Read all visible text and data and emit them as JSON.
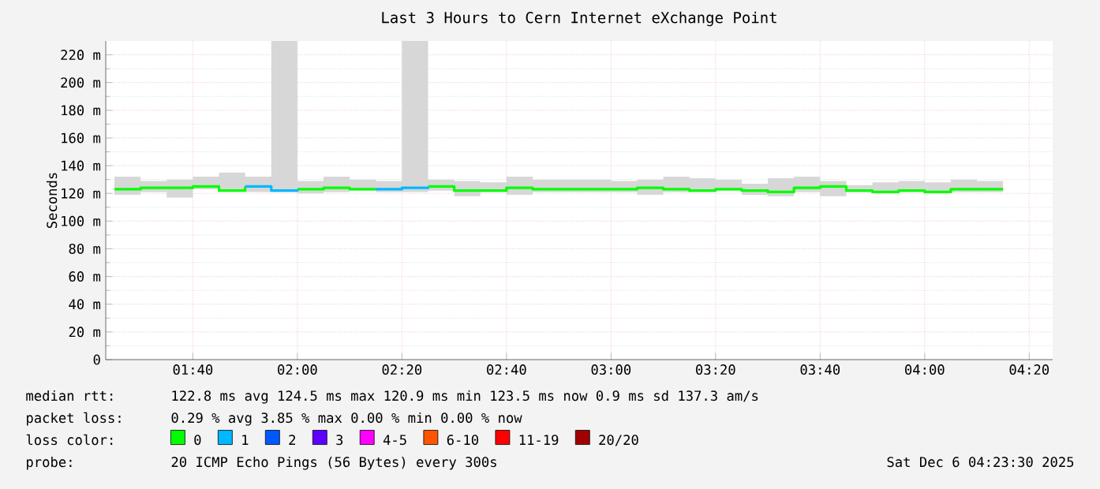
{
  "chart_data": {
    "type": "step",
    "title": "Last 3 Hours to Cern Internet eXchange Point",
    "ylabel": "Seconds",
    "x": [
      1.4167,
      1.5,
      1.5833,
      1.6667,
      1.75,
      1.8333,
      1.9167,
      2.0,
      2.0833,
      2.1667,
      2.25,
      2.3333,
      2.4167,
      2.5,
      2.5833,
      2.6667,
      2.75,
      2.8333,
      2.9167,
      3.0,
      3.0833,
      3.1667,
      3.25,
      3.3333,
      3.4167,
      3.5,
      3.5833,
      3.6667,
      3.75,
      3.8333,
      3.9167,
      4.0,
      4.0833,
      4.1667,
      4.25
    ],
    "xlim": [
      1.389,
      4.408
    ],
    "xticks": [
      {
        "value": 1.6667,
        "label": "01:40"
      },
      {
        "value": 2.0,
        "label": "02:00"
      },
      {
        "value": 2.3333,
        "label": "02:20"
      },
      {
        "value": 2.6667,
        "label": "02:40"
      },
      {
        "value": 3.0,
        "label": "03:00"
      },
      {
        "value": 3.3333,
        "label": "03:20"
      },
      {
        "value": 3.6667,
        "label": "03:40"
      },
      {
        "value": 4.0,
        "label": "04:00"
      },
      {
        "value": 4.3333,
        "label": "04:20"
      }
    ],
    "ylim": [
      0,
      230
    ],
    "yticks": [
      0,
      {
        "value": 20,
        "label": "20 m"
      },
      {
        "value": 40,
        "label": "40 m"
      },
      {
        "value": 60,
        "label": "60 m"
      },
      {
        "value": 80,
        "label": "80 m"
      },
      {
        "value": 100,
        "label": "100 m"
      },
      {
        "value": 120,
        "label": "120 m"
      },
      {
        "value": 140,
        "label": "140 m"
      },
      {
        "value": 160,
        "label": "160 m"
      },
      {
        "value": 180,
        "label": "180 m"
      },
      {
        "value": 200,
        "label": "200 m"
      },
      {
        "value": 220,
        "label": "220 m"
      }
    ],
    "grid": true,
    "legend": "bottom",
    "series": [
      {
        "name": "0",
        "color": "#00ff00",
        "values": [
          123,
          124,
          124,
          125,
          122,
          125,
          null,
          123,
          124,
          123,
          123,
          null,
          125,
          122,
          122,
          124,
          123,
          123,
          123,
          123,
          124,
          123,
          122,
          123,
          122,
          121,
          124,
          125,
          122,
          121,
          122,
          121,
          123,
          123,
          123
        ],
        "lower": [
          119,
          121,
          117,
          123,
          122,
          121,
          121,
          120,
          121,
          122,
          121,
          121,
          122,
          118,
          121,
          119,
          121,
          121,
          121,
          121,
          119,
          121,
          121,
          122,
          119,
          118,
          121,
          118,
          121,
          121,
          121,
          121,
          121,
          121,
          121
        ],
        "upper": [
          132,
          129,
          130,
          132,
          135,
          132,
          230,
          129,
          132,
          130,
          129,
          230,
          130,
          129,
          128,
          132,
          130,
          130,
          130,
          129,
          130,
          132,
          131,
          130,
          127,
          131,
          132,
          129,
          126,
          128,
          129,
          128,
          130,
          129,
          129
        ]
      },
      {
        "name": "1",
        "color": "#00b8ff",
        "values": [
          null,
          null,
          null,
          null,
          null,
          125,
          122,
          123,
          null,
          null,
          123,
          124,
          125,
          null,
          null,
          null,
          null,
          null,
          null,
          null,
          null,
          null,
          null,
          null,
          null,
          null,
          null,
          null,
          null,
          null,
          null,
          null,
          null,
          null,
          null
        ]
      },
      {
        "name": "2",
        "color": "#0059ff",
        "values": [
          null,
          null,
          null,
          null,
          null,
          null,
          null,
          null,
          null,
          null,
          null,
          null,
          null,
          null,
          null,
          null,
          null,
          null,
          null,
          null,
          null,
          null,
          null,
          null,
          null,
          null,
          null,
          null,
          null,
          null,
          null,
          null,
          null,
          null,
          null
        ]
      },
      {
        "name": "3",
        "color": "#5e00ff",
        "values": [
          null,
          null,
          null,
          null,
          null,
          null,
          null,
          null,
          null,
          null,
          null,
          null,
          null,
          null,
          null,
          null,
          null,
          null,
          null,
          null,
          null,
          null,
          null,
          null,
          null,
          null,
          null,
          null,
          null,
          null,
          null,
          null,
          null,
          null,
          null
        ]
      },
      {
        "name": "4-5",
        "color": "#ff00fe",
        "values": [
          null,
          null,
          null,
          null,
          null,
          null,
          null,
          null,
          null,
          null,
          null,
          null,
          null,
          null,
          null,
          null,
          null,
          null,
          null,
          null,
          null,
          null,
          null,
          null,
          null,
          null,
          null,
          null,
          null,
          null,
          null,
          null,
          null,
          null,
          null
        ]
      },
      {
        "name": "6-10",
        "color": "#ff5500",
        "values": [
          null,
          null,
          null,
          null,
          null,
          null,
          null,
          null,
          null,
          null,
          null,
          null,
          null,
          null,
          null,
          null,
          null,
          null,
          null,
          null,
          null,
          null,
          null,
          null,
          null,
          null,
          null,
          null,
          null,
          null,
          null,
          null,
          null,
          null,
          null
        ]
      },
      {
        "name": "11-19",
        "color": "#ff0000",
        "values": [
          null,
          null,
          null,
          null,
          null,
          null,
          null,
          null,
          null,
          null,
          null,
          null,
          null,
          null,
          null,
          null,
          null,
          null,
          null,
          null,
          null,
          null,
          null,
          null,
          null,
          null,
          null,
          null,
          null,
          null,
          null,
          null,
          null,
          null,
          null
        ]
      },
      {
        "name": "20/20",
        "color": "#a10000",
        "values": [
          null,
          null,
          null,
          null,
          null,
          null,
          null,
          null,
          null,
          null,
          null,
          null,
          null,
          null,
          null,
          null,
          null,
          null,
          null,
          null,
          null,
          null,
          null,
          null,
          null,
          null,
          null,
          null,
          null,
          null,
          null,
          null,
          null,
          null,
          null
        ]
      }
    ],
    "annotations": [
      "median rtt:",
      "122.8 ms avg 124.5 ms max 120.9 ms min 123.5 ms now 0.9 ms sd 137.3 am/s",
      "packet loss:",
      "0.29 % avg 3.85 % max 0.00 % min 0.00 % now",
      "loss color:",
      "probe:",
      "20 ICMP Echo Pings (56 Bytes) every 300s",
      "Sat Dec 6 04:23:30 2025"
    ]
  }
}
